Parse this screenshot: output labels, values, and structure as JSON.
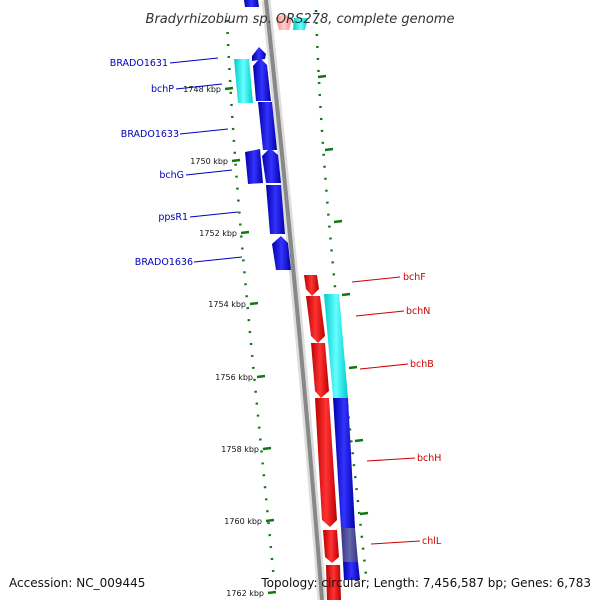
{
  "header": {
    "title": "Bradyrhizobium sp. ORS278, complete genome"
  },
  "footer": {
    "accession": "Accession: NC_009445",
    "topology": "Topology: circular; Length: 7,456,587 bp; Genes: 6,783"
  },
  "colors": {
    "forward_cds": "#0000ee",
    "reverse_cds": "#ee0000",
    "forward_rna": "#00eeee",
    "reverse_rna": "#ff9999",
    "backbone": "#888888",
    "tick": "#117711",
    "label_left": "#0000bb",
    "label_right": "#cc0000"
  },
  "kbp_labels": [
    "1748 kbp",
    "1750 kbp",
    "1752 kbp",
    "1754 kbp",
    "1756 kbp",
    "1758 kbp",
    "1760 kbp",
    "1762 kbp"
  ],
  "left_genes": [
    "BRADO1631",
    "bchP",
    "BRADO1633",
    "bchG",
    "ppsR1",
    "BRADO1636"
  ],
  "right_genes": [
    "bchF",
    "bchN",
    "bchB",
    "bchH",
    "chlL"
  ]
}
